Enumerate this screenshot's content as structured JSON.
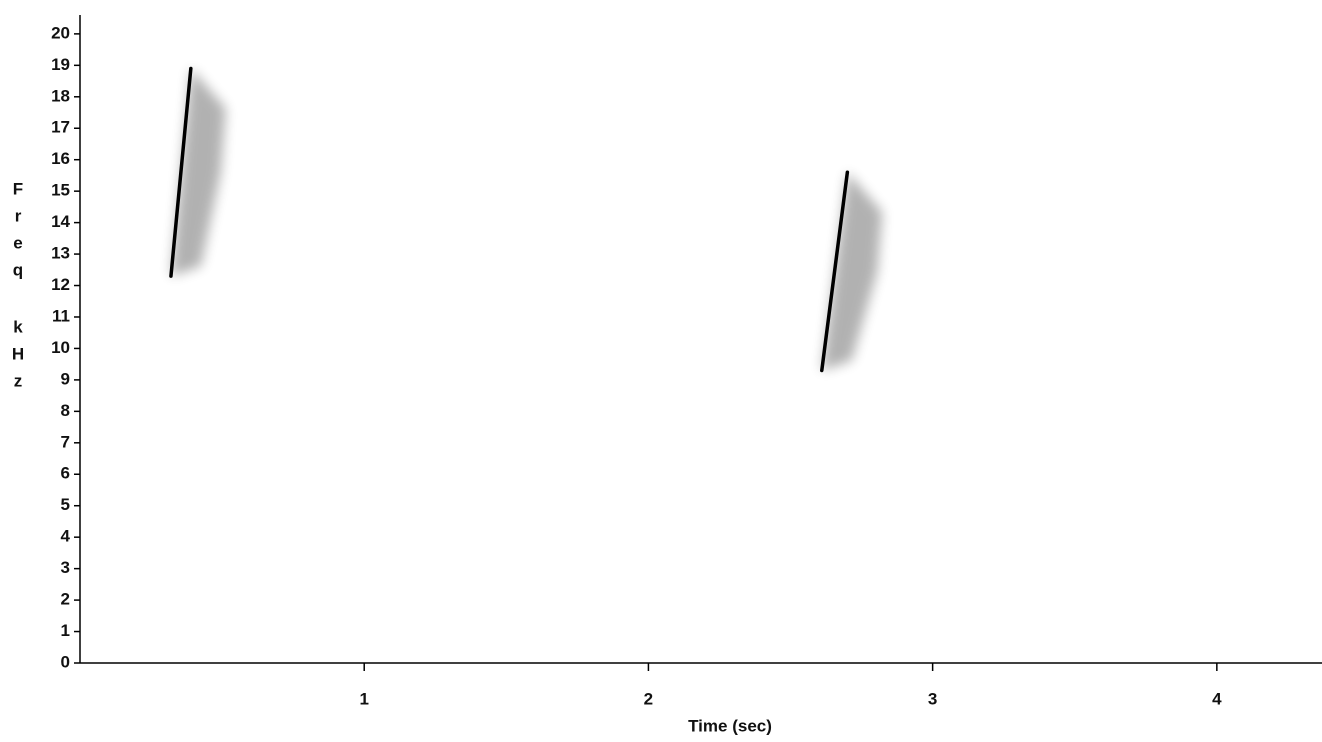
{
  "chart_data": {
    "type": "spectrogram",
    "xlabel": "Time (sec)",
    "ylabel": [
      "F",
      "r",
      "e",
      "q",
      "k",
      "H",
      "z"
    ],
    "xlim": [
      0,
      4.37
    ],
    "xticks": [
      1,
      2,
      3,
      4
    ],
    "ylim": [
      0,
      20.6
    ],
    "yticks": [
      0,
      1,
      2,
      3,
      4,
      5,
      6,
      7,
      8,
      9,
      10,
      11,
      12,
      13,
      14,
      15,
      16,
      17,
      18,
      19,
      20
    ],
    "color": "#000000",
    "calls": [
      {
        "x": [
          0.32,
          0.39
        ],
        "y": [
          12.3,
          18.9
        ]
      },
      {
        "x": [
          2.61,
          2.7
        ],
        "y": [
          9.3,
          15.6
        ]
      }
    ]
  }
}
